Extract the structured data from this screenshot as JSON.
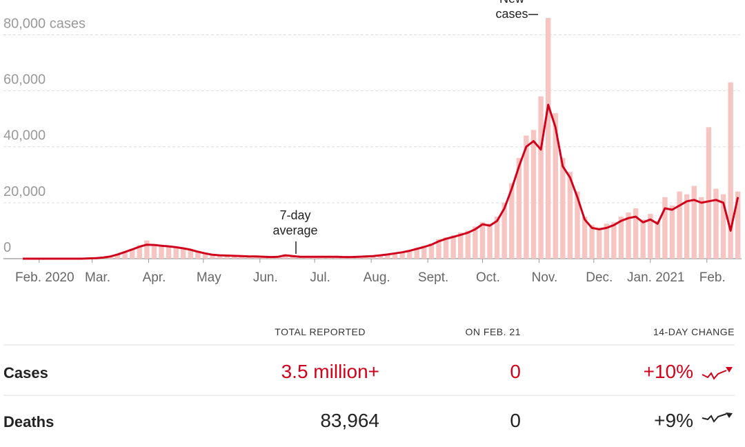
{
  "chart_data": {
    "type": "bar+line",
    "xlim": [
      -9,
      385
    ],
    "xticks": [
      {
        "value": 0,
        "label": "Feb. 2020"
      },
      {
        "value": 29,
        "label": "Mar."
      },
      {
        "value": 60,
        "label": "Apr."
      },
      {
        "value": 90,
        "label": "May"
      },
      {
        "value": 121,
        "label": "Jun."
      },
      {
        "value": 151,
        "label": "Jul."
      },
      {
        "value": 182,
        "label": "Aug."
      },
      {
        "value": 213,
        "label": "Sept."
      },
      {
        "value": 243,
        "label": "Oct."
      },
      {
        "value": 274,
        "label": "Nov."
      },
      {
        "value": 304,
        "label": "Dec."
      },
      {
        "value": 335,
        "label": "Jan. 2021"
      },
      {
        "value": 366,
        "label": "Feb."
      }
    ],
    "ylim": [
      0,
      88000
    ],
    "yticks": [
      0,
      {
        "value": 20000,
        "label": "20,000"
      },
      {
        "value": 40000,
        "label": "40,000"
      },
      {
        "value": 60000,
        "label": "60,000"
      },
      {
        "value": 80000,
        "label": "80,000 cases"
      }
    ],
    "grid": true,
    "x": [
      -9,
      -5,
      -1,
      3,
      7,
      11,
      15,
      19,
      23,
      27,
      31,
      35,
      39,
      43,
      47,
      51,
      55,
      59,
      63,
      67,
      71,
      75,
      79,
      83,
      87,
      91,
      95,
      99,
      103,
      107,
      111,
      115,
      119,
      123,
      127,
      131,
      135,
      139,
      143,
      147,
      151,
      155,
      159,
      163,
      167,
      171,
      175,
      179,
      183,
      187,
      191,
      195,
      199,
      203,
      207,
      211,
      215,
      219,
      223,
      227,
      231,
      235,
      239,
      243,
      247,
      251,
      255,
      259,
      263,
      267,
      271,
      275,
      279,
      283,
      287,
      291,
      295,
      299,
      303,
      307,
      311,
      315,
      319,
      323,
      327,
      331,
      335,
      339,
      343,
      347,
      351,
      355,
      359,
      363,
      367,
      371,
      375,
      379,
      383
    ],
    "series": [
      {
        "name": "New cases",
        "type": "bar",
        "color": "#f6c4c1",
        "values": [
          0,
          0,
          0,
          0,
          0,
          0,
          0,
          0,
          0,
          150,
          250,
          500,
          900,
          1700,
          2600,
          3500,
          4800,
          6500,
          5200,
          4800,
          4400,
          4300,
          3600,
          3400,
          2600,
          2100,
          1500,
          1300,
          1100,
          1100,
          1000,
          900,
          900,
          700,
          600,
          800,
          1500,
          1000,
          700,
          800,
          700,
          800,
          700,
          800,
          600,
          700,
          800,
          900,
          1000,
          1300,
          1700,
          2100,
          2500,
          3100,
          3900,
          4600,
          5400,
          7000,
          7600,
          8300,
          9400,
          10000,
          11500,
          13000,
          12500,
          15000,
          20000,
          27000,
          36000,
          44000,
          46000,
          58000,
          86000,
          52000,
          36000,
          31000,
          24000,
          15000,
          12000,
          11000,
          12500,
          13000,
          15000,
          16500,
          18000,
          14000,
          16000,
          13500,
          22000,
          19000,
          24000,
          23000,
          26000,
          22000,
          47000,
          25000,
          23000,
          63000,
          24000
        ]
      },
      {
        "name": "7-day average",
        "type": "line",
        "color": "#d0021b",
        "values": [
          0,
          0,
          0,
          0,
          0,
          0,
          0,
          0,
          0,
          100,
          200,
          400,
          800,
          1500,
          2400,
          3300,
          4300,
          5000,
          4900,
          4600,
          4400,
          4100,
          3700,
          3200,
          2500,
          1900,
          1400,
          1200,
          1100,
          1000,
          900,
          800,
          800,
          700,
          600,
          700,
          1200,
          900,
          700,
          700,
          700,
          700,
          700,
          700,
          600,
          600,
          700,
          800,
          900,
          1200,
          1500,
          1900,
          2300,
          2800,
          3500,
          4200,
          5000,
          6200,
          7100,
          7800,
          8500,
          9300,
          10500,
          12300,
          11800,
          13500,
          18000,
          25000,
          33000,
          40000,
          42000,
          39000,
          55000,
          47000,
          33000,
          29000,
          22000,
          14000,
          11000,
          10500,
          11000,
          12000,
          13500,
          14500,
          15000,
          13000,
          14000,
          12500,
          18000,
          17500,
          19000,
          20500,
          21000,
          20000,
          20500,
          21000,
          20000,
          10000,
          22000
        ]
      }
    ]
  },
  "table": {
    "headers": [
      "TOTAL REPORTED",
      "ON FEB. 21",
      "14-DAY CHANGE"
    ],
    "rows": [
      [
        "Cases",
        "3.5 million+",
        "0",
        "+10%"
      ],
      [
        "Deaths",
        "83,964",
        "0",
        "+9%"
      ]
    ]
  }
}
